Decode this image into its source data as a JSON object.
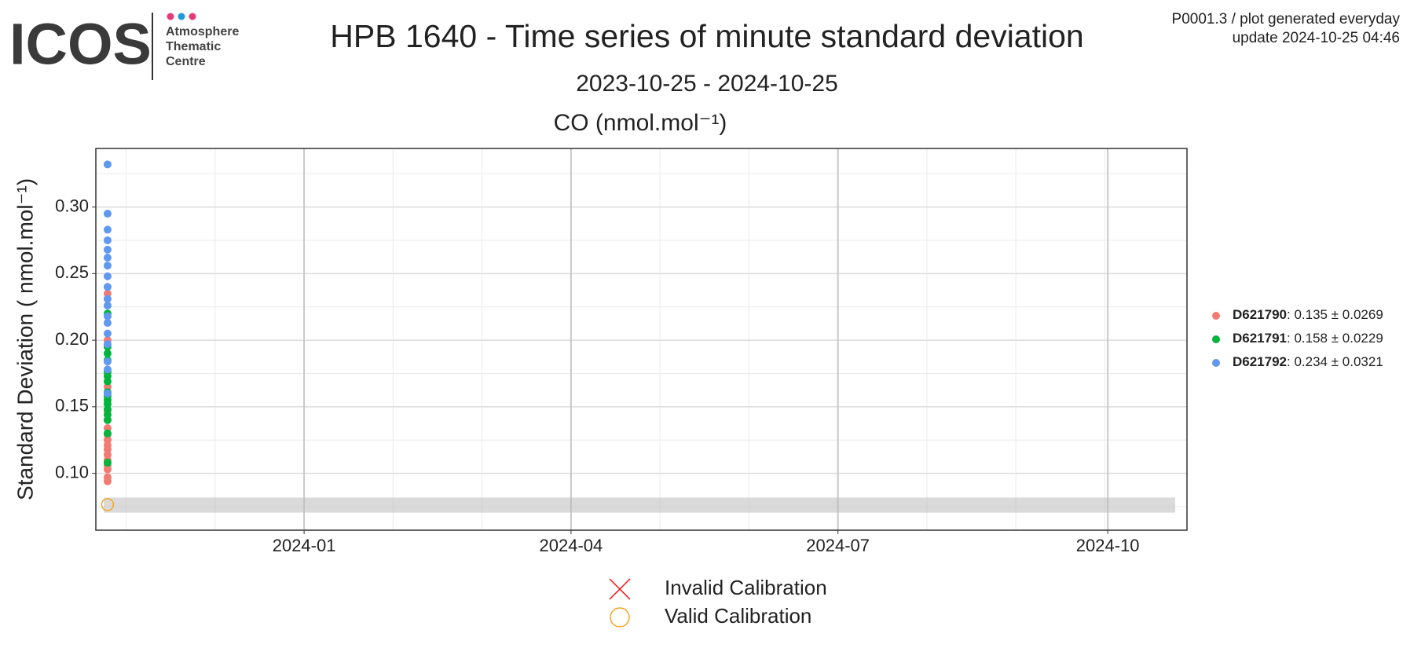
{
  "logo": {
    "name": "ICOS",
    "lines": [
      "Atmosphere",
      "Thematic",
      "Centre"
    ]
  },
  "header": {
    "info": "P0001.3 / plot generated everyday",
    "update": "update  2024-10-25 04:46"
  },
  "chart_data": {
    "type": "scatter",
    "title": "HPB 1640 - Time series of minute standard deviation",
    "subtitle": "2023-10-25 - 2024-10-25",
    "panel_title": "CO (nmol.mol⁻¹)",
    "y_label": "Standard Deviation ( nmol.mol⁻¹)",
    "xlim": [
      "2023-10-22",
      "2024-10-28"
    ],
    "xticks": [
      {
        "value": "2024-01-01",
        "label": "2024-01"
      },
      {
        "value": "2024-04-01",
        "label": "2024-04"
      },
      {
        "value": "2024-07-01",
        "label": "2024-07"
      },
      {
        "value": "2024-10-01",
        "label": "2024-10"
      }
    ],
    "ylim": [
      0.0573,
      0.344
    ],
    "yticks": [
      {
        "value": 0.1,
        "label": "0.10"
      },
      {
        "value": 0.15,
        "label": "0.15"
      },
      {
        "value": 0.2,
        "label": "0.20"
      },
      {
        "value": 0.25,
        "label": "0.25"
      },
      {
        "value": 0.3,
        "label": "0.30"
      }
    ],
    "grid": true,
    "series": [
      {
        "name": "D621790",
        "summary": ": 0.135 ± 0.0269",
        "color": "#f07b72",
        "x": [
          "2023-10-26",
          "2023-10-26",
          "2023-10-26",
          "2023-10-26",
          "2023-10-26",
          "2023-10-26",
          "2023-10-26",
          "2023-10-26",
          "2023-10-26",
          "2023-10-26",
          "2023-10-26",
          "2023-10-26",
          "2023-10-26",
          "2023-10-26",
          "2023-10-26",
          "2023-10-26"
        ],
        "values": [
          0.094,
          0.097,
          0.103,
          0.106,
          0.11,
          0.114,
          0.118,
          0.121,
          0.125,
          0.129,
          0.134,
          0.14,
          0.147,
          0.165,
          0.2,
          0.235
        ]
      },
      {
        "name": "D621791",
        "summary": ": 0.158 ± 0.0229",
        "color": "#00b43c",
        "x": [
          "2023-10-26",
          "2023-10-26",
          "2023-10-26",
          "2023-10-26",
          "2023-10-26",
          "2023-10-26",
          "2023-10-26",
          "2023-10-26",
          "2023-10-26",
          "2023-10-26",
          "2023-10-26",
          "2023-10-26",
          "2023-10-26",
          "2023-10-26",
          "2023-10-26",
          "2023-10-26"
        ],
        "values": [
          0.108,
          0.13,
          0.14,
          0.144,
          0.148,
          0.152,
          0.155,
          0.158,
          0.161,
          0.169,
          0.173,
          0.176,
          0.185,
          0.19,
          0.195,
          0.22
        ]
      },
      {
        "name": "D621792",
        "summary": ": 0.234 ± 0.0321",
        "color": "#6198f0",
        "x": [
          "2023-10-26",
          "2023-10-26",
          "2023-10-26",
          "2023-10-26",
          "2023-10-26",
          "2023-10-26",
          "2023-10-26",
          "2023-10-26",
          "2023-10-26",
          "2023-10-26",
          "2023-10-26",
          "2023-10-26",
          "2023-10-26",
          "2023-10-26",
          "2023-10-26",
          "2023-10-26",
          "2023-10-26",
          "2023-10-26"
        ],
        "values": [
          0.16,
          0.178,
          0.184,
          0.197,
          0.205,
          0.213,
          0.218,
          0.226,
          0.231,
          0.24,
          0.248,
          0.256,
          0.262,
          0.268,
          0.275,
          0.283,
          0.295,
          0.332
        ]
      }
    ],
    "calibration_band": [
      0.0705,
      0.0818
    ],
    "valid_calibration": {
      "name": "Valid Calibration",
      "color": "#f5a623",
      "x": [
        "2023-10-26"
      ],
      "values": [
        0.0765
      ]
    },
    "invalid_calibration": {
      "name": "Invalid Calibration",
      "color": "#ee1111"
    }
  }
}
